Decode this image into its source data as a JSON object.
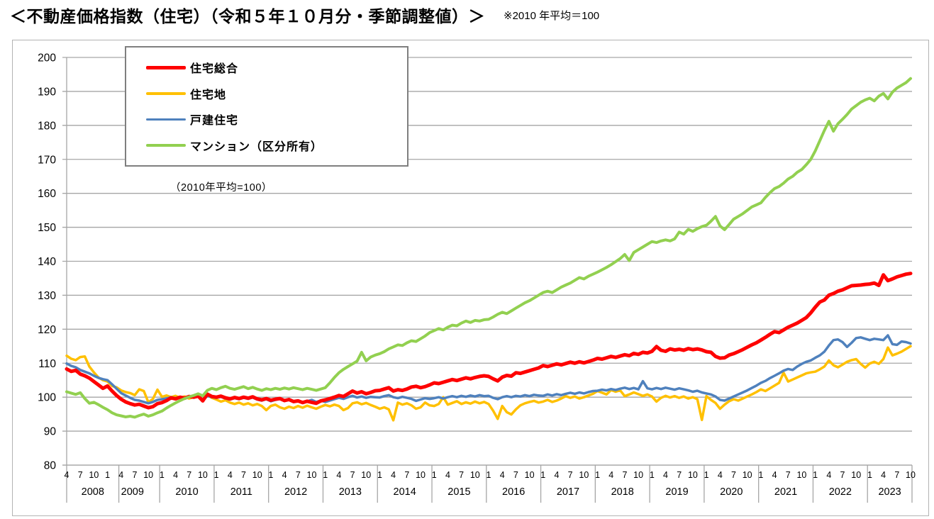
{
  "title": "＜不動産価格指数（住宅）（令和５年１０月分・季節調整値）＞",
  "title_note": "※2010 年平均＝100",
  "chart_data": {
    "type": "line",
    "inner_note": "（2010年平均=100）",
    "ylim": [
      80,
      200
    ],
    "y_step": 10,
    "y_ticks": [
      200,
      190,
      180,
      170,
      160,
      150,
      140,
      130,
      120,
      110,
      100,
      90,
      80
    ],
    "grid": true,
    "legend_position": "top-left",
    "x_frequency": "monthly",
    "x_start": "2008-04",
    "x_end": "2023-10",
    "x_years": [
      {
        "label": "2008",
        "months": [
          "4",
          "7",
          "10"
        ]
      },
      {
        "label": "2009",
        "months": [
          "1",
          "4",
          "7",
          "10"
        ]
      },
      {
        "label": "2010",
        "months": [
          "1",
          "4",
          "7",
          "10"
        ]
      },
      {
        "label": "2011",
        "months": [
          "1",
          "4",
          "7",
          "10"
        ]
      },
      {
        "label": "2012",
        "months": [
          "1",
          "4",
          "7",
          "10"
        ]
      },
      {
        "label": "2013",
        "months": [
          "1",
          "4",
          "7",
          "10"
        ]
      },
      {
        "label": "2014",
        "months": [
          "1",
          "4",
          "7",
          "10"
        ]
      },
      {
        "label": "2015",
        "months": [
          "1",
          "4",
          "7",
          "10"
        ]
      },
      {
        "label": "2016",
        "months": [
          "1",
          "4",
          "7",
          "10"
        ]
      },
      {
        "label": "2017",
        "months": [
          "1",
          "4",
          "7",
          "10"
        ]
      },
      {
        "label": "2018",
        "months": [
          "1",
          "4",
          "7",
          "10"
        ]
      },
      {
        "label": "2019",
        "months": [
          "1",
          "4",
          "7",
          "10"
        ]
      },
      {
        "label": "2020",
        "months": [
          "1",
          "4",
          "7",
          "10"
        ]
      },
      {
        "label": "2021",
        "months": [
          "1",
          "4",
          "7",
          "10"
        ]
      },
      {
        "label": "2022",
        "months": [
          "1",
          "4",
          "7",
          "10"
        ]
      },
      {
        "label": "2023",
        "months": [
          "1",
          "4",
          "7",
          "10"
        ]
      }
    ],
    "series": [
      {
        "name": "住宅総合",
        "color": "#fe0000",
        "width": 5,
        "values": [
          108.3,
          107.6,
          107.9,
          106.8,
          106.3,
          105.6,
          104.6,
          103.6,
          102.6,
          103.3,
          101.8,
          100.5,
          99.4,
          98.6,
          98.1,
          97.7,
          97.9,
          97.4,
          96.9,
          97.2,
          98.1,
          98.4,
          99.0,
          99.8,
          99.5,
          100.0,
          99.7,
          100.2,
          100.0,
          100.3,
          98.9,
          100.9,
          100.2,
          100.0,
          100.3,
          99.8,
          99.5,
          99.9,
          99.6,
          100.0,
          99.7,
          100.1,
          99.5,
          99.2,
          99.6,
          99.1,
          99.4,
          99.6,
          99.0,
          99.3,
          98.7,
          98.9,
          98.4,
          98.8,
          98.5,
          98.2,
          98.9,
          99.2,
          99.6,
          100.0,
          100.5,
          100.2,
          101.0,
          101.8,
          101.2,
          101.6,
          101.0,
          101.4,
          101.9,
          102.0,
          102.4,
          102.8,
          101.8,
          102.2,
          102.0,
          102.4,
          103.0,
          103.2,
          102.8,
          103.1,
          103.6,
          104.2,
          104.0,
          104.4,
          104.8,
          105.2,
          104.9,
          105.3,
          105.7,
          105.4,
          105.8,
          106.1,
          106.3,
          106.1,
          105.4,
          104.8,
          105.9,
          106.4,
          106.2,
          107.2,
          107.0,
          107.4,
          107.8,
          108.2,
          108.6,
          109.3,
          109.0,
          109.4,
          109.8,
          109.5,
          109.9,
          110.3,
          110.0,
          110.4,
          110.1,
          110.5,
          110.9,
          111.4,
          111.2,
          111.6,
          112.0,
          111.7,
          112.1,
          112.5,
          112.2,
          112.9,
          112.6,
          113.2,
          113.0,
          113.5,
          114.9,
          113.8,
          113.5,
          114.2,
          113.9,
          114.1,
          113.8,
          114.3,
          114.0,
          114.2,
          113.9,
          113.4,
          113.2,
          112.0,
          111.5,
          111.6,
          112.4,
          112.8,
          113.4,
          114.0,
          114.7,
          115.4,
          116.0,
          116.8,
          117.6,
          118.5,
          119.3,
          119.0,
          119.8,
          120.6,
          121.2,
          121.8,
          122.6,
          123.4,
          124.8,
          126.5,
          128.0,
          128.6,
          130.0,
          130.5,
          131.2,
          131.6,
          132.2,
          132.8,
          132.9,
          133.0,
          133.2,
          133.3,
          133.6,
          132.9,
          136.0,
          134.3,
          134.8,
          135.4,
          135.8,
          136.2,
          136.4
        ]
      },
      {
        "name": "住宅地",
        "color": "#ffc000",
        "width": 3.5,
        "values": [
          112.2,
          111.3,
          110.9,
          111.8,
          112.0,
          109.0,
          107.3,
          105.8,
          105.0,
          104.6,
          103.3,
          102.9,
          102.0,
          101.5,
          101.2,
          100.6,
          102.3,
          101.8,
          98.5,
          99.5,
          102.2,
          100.1,
          100.5,
          100.0,
          100.4,
          99.8,
          100.2,
          99.6,
          100.0,
          100.3,
          99.2,
          100.6,
          99.8,
          99.3,
          98.7,
          99.1,
          98.4,
          98.0,
          98.4,
          97.8,
          98.2,
          97.6,
          98.0,
          97.4,
          96.2,
          97.4,
          97.8,
          97.0,
          96.6,
          97.2,
          96.8,
          97.4,
          96.9,
          97.5,
          97.0,
          96.6,
          97.2,
          97.7,
          97.3,
          97.8,
          97.4,
          96.2,
          96.8,
          98.2,
          98.5,
          97.9,
          98.3,
          97.7,
          97.2,
          96.6,
          97.0,
          96.4,
          93.2,
          98.4,
          97.8,
          98.2,
          97.6,
          96.6,
          97.0,
          98.4,
          97.6,
          97.4,
          98.0,
          100.0,
          97.8,
          98.3,
          98.8,
          98.0,
          98.5,
          98.1,
          98.7,
          98.2,
          98.6,
          98.0,
          96.0,
          93.6,
          97.4,
          95.6,
          94.9,
          96.4,
          97.6,
          98.2,
          98.6,
          98.9,
          98.4,
          98.7,
          99.2,
          98.6,
          99.0,
          99.6,
          100.3,
          99.8,
          100.2,
          99.6,
          100.0,
          100.5,
          101.0,
          101.8,
          101.3,
          100.8,
          102.1,
          101.6,
          102.0,
          100.3,
          100.8,
          101.4,
          100.9,
          100.4,
          100.8,
          100.2,
          98.7,
          99.8,
          100.4,
          99.9,
          100.3,
          99.8,
          100.2,
          99.6,
          100.0,
          99.4,
          93.3,
          100.3,
          99.2,
          98.3,
          96.6,
          97.8,
          98.8,
          99.4,
          99.0,
          99.6,
          100.2,
          100.8,
          101.5,
          102.3,
          101.8,
          102.6,
          103.4,
          104.2,
          107.2,
          104.6,
          105.2,
          105.8,
          106.4,
          107.0,
          107.3,
          107.5,
          108.2,
          109.0,
          110.8,
          109.4,
          108.8,
          109.6,
          110.4,
          110.9,
          111.2,
          109.8,
          108.7,
          109.9,
          110.4,
          109.8,
          111.2,
          114.6,
          112.3,
          112.8,
          113.4,
          114.2,
          115.0
        ]
      },
      {
        "name": "戸建住宅",
        "color": "#4f81bd",
        "width": 3.5,
        "values": [
          109.9,
          109.2,
          108.8,
          108.0,
          107.5,
          107.0,
          106.3,
          105.7,
          105.3,
          105.0,
          103.8,
          102.5,
          101.2,
          100.5,
          99.8,
          99.2,
          99.0,
          98.6,
          98.2,
          98.6,
          99.2,
          99.4,
          99.6,
          100.0,
          99.7,
          100.1,
          99.8,
          100.2,
          99.9,
          100.3,
          99.0,
          100.4,
          100.0,
          99.8,
          100.1,
          99.6,
          99.3,
          99.7,
          99.4,
          99.8,
          99.5,
          99.9,
          99.3,
          99.0,
          99.4,
          98.8,
          99.2,
          99.5,
          98.9,
          99.3,
          98.6,
          99.0,
          98.4,
          98.8,
          99.2,
          98.6,
          99.0,
          98.6,
          99.0,
          99.4,
          99.8,
          99.5,
          100.0,
          100.4,
          99.9,
          100.2,
          99.8,
          100.1,
          100.0,
          99.9,
          100.3,
          100.6,
          100.0,
          99.7,
          100.1,
          99.8,
          99.5,
          98.9,
          99.3,
          99.7,
          99.5,
          99.7,
          100.0,
          99.6,
          100.0,
          100.3,
          100.0,
          100.4,
          100.1,
          100.5,
          100.2,
          100.6,
          100.3,
          100.4,
          99.8,
          99.4,
          100.0,
          100.3,
          100.0,
          100.4,
          100.2,
          100.6,
          100.3,
          100.7,
          100.5,
          100.4,
          100.8,
          100.5,
          100.9,
          100.6,
          101.0,
          101.3,
          101.0,
          101.4,
          101.1,
          101.5,
          101.8,
          101.9,
          102.2,
          102.0,
          102.4,
          102.1,
          102.5,
          102.8,
          102.4,
          102.7,
          102.3,
          104.7,
          102.6,
          102.3,
          102.7,
          102.4,
          102.8,
          102.5,
          102.2,
          102.6,
          102.3,
          102.0,
          101.6,
          101.9,
          101.4,
          101.1,
          100.8,
          100.2,
          99.2,
          99.0,
          99.6,
          100.2,
          100.8,
          101.4,
          102.0,
          102.7,
          103.4,
          104.2,
          104.8,
          105.6,
          106.3,
          107.0,
          107.8,
          108.3,
          108.0,
          109.0,
          109.8,
          110.4,
          110.8,
          111.6,
          112.3,
          113.4,
          115.2,
          116.8,
          117.0,
          116.2,
          114.8,
          116.0,
          117.4,
          117.6,
          117.2,
          116.8,
          117.2,
          117.0,
          116.8,
          118.2,
          115.6,
          115.4,
          116.4,
          116.2,
          115.8
        ]
      },
      {
        "name": "マンション（区分所有）",
        "color": "#92d050",
        "width": 4,
        "values": [
          101.6,
          101.2,
          100.8,
          101.3,
          99.6,
          98.2,
          98.5,
          97.8,
          97.0,
          96.3,
          95.4,
          94.8,
          94.5,
          94.2,
          94.4,
          94.1,
          94.6,
          95.0,
          94.4,
          94.8,
          95.4,
          95.9,
          96.8,
          97.6,
          98.3,
          99.0,
          99.6,
          100.1,
          100.5,
          101.0,
          100.4,
          102.0,
          102.6,
          102.2,
          102.8,
          103.2,
          102.6,
          102.3,
          102.7,
          103.1,
          102.5,
          102.9,
          102.4,
          102.0,
          102.5,
          102.2,
          102.6,
          102.3,
          102.7,
          102.4,
          102.8,
          102.5,
          102.2,
          102.6,
          102.3,
          102.0,
          102.4,
          102.8,
          104.2,
          105.8,
          107.2,
          108.2,
          109.0,
          109.8,
          110.6,
          113.2,
          110.7,
          111.8,
          112.4,
          112.8,
          113.4,
          114.2,
          114.8,
          115.4,
          115.2,
          116.0,
          116.6,
          116.4,
          117.2,
          118.0,
          119.0,
          119.6,
          120.2,
          119.8,
          120.6,
          121.2,
          121.0,
          121.8,
          122.4,
          122.0,
          122.6,
          122.4,
          122.8,
          122.9,
          123.6,
          124.4,
          125.0,
          124.6,
          125.4,
          126.2,
          127.0,
          127.8,
          128.4,
          129.2,
          130.0,
          130.8,
          131.2,
          130.8,
          131.6,
          132.4,
          133.0,
          133.6,
          134.4,
          135.2,
          134.8,
          135.6,
          136.2,
          136.8,
          137.5,
          138.2,
          139.0,
          139.9,
          140.8,
          142.0,
          140.2,
          142.6,
          143.4,
          144.2,
          145.0,
          145.8,
          145.5,
          146.0,
          146.3,
          146.0,
          146.6,
          148.6,
          148.0,
          149.4,
          148.8,
          149.6,
          150.2,
          150.6,
          151.8,
          153.2,
          150.4,
          149.3,
          150.8,
          152.4,
          153.2,
          154.0,
          155.0,
          156.0,
          156.6,
          157.2,
          158.8,
          160.2,
          161.4,
          162.0,
          163.0,
          164.2,
          165.0,
          166.2,
          167.0,
          168.4,
          170.0,
          172.5,
          175.5,
          178.5,
          181.2,
          178.3,
          180.5,
          181.8,
          183.2,
          184.8,
          185.8,
          186.8,
          187.5,
          188.0,
          187.2,
          188.6,
          189.4,
          187.8,
          189.8,
          191.0,
          191.8,
          192.6,
          193.8
        ]
      }
    ]
  }
}
